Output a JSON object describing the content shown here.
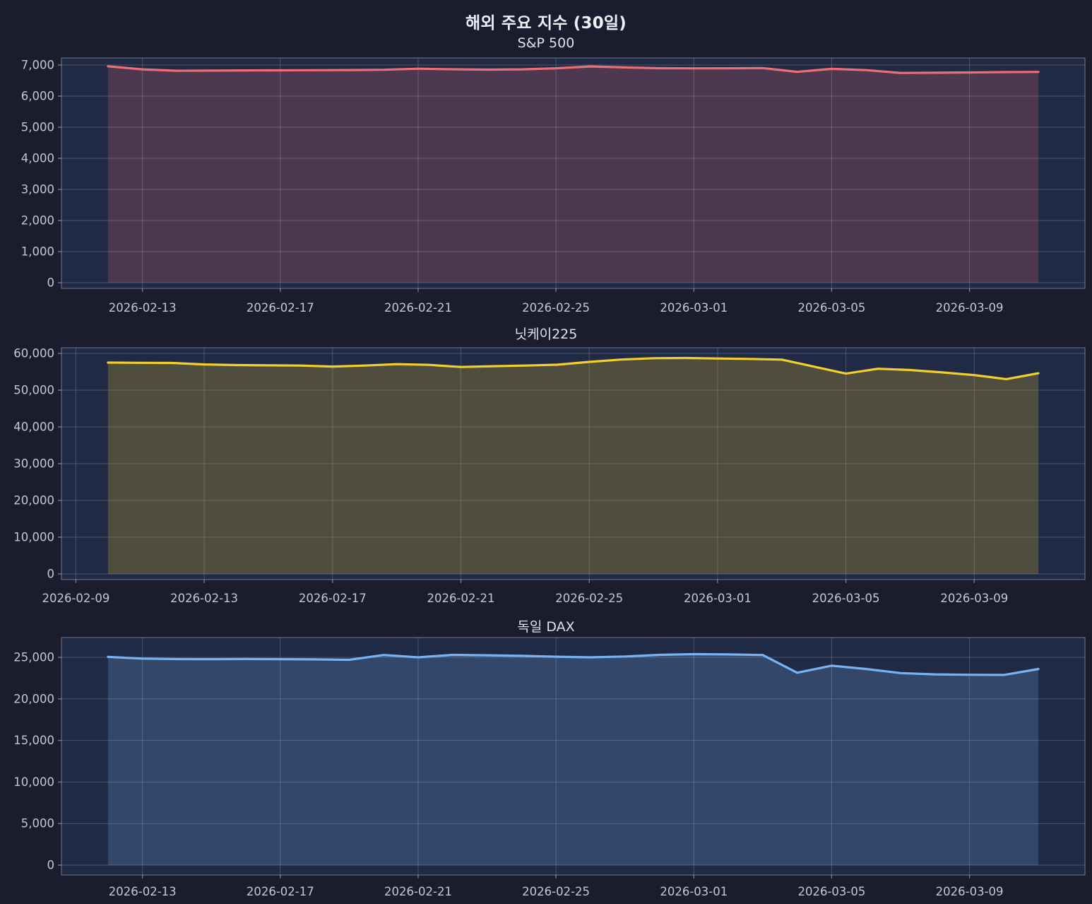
{
  "title": "해외 주요 지수 (30일)",
  "colors": {
    "background": "#1b1d2e",
    "plot_background": "#202a45",
    "grid": "rgba(195,202,220,0.25)",
    "border": "rgba(195,202,220,0.38)",
    "tick_mark": "rgba(195,202,220,0.55)",
    "tick_text": "#c4c7d3",
    "sp500_line": "#ee6e76",
    "nikkei_line": "#f3cf2b",
    "dax_line": "#77b3f3"
  },
  "chart_data": [
    {
      "id": "sp500",
      "type": "area",
      "title": "S&P 500",
      "line_color": "#ee6e76",
      "fill_opacity": 0.22,
      "ylim": [
        -182,
        7227
      ],
      "xlim_day_offsets": [
        -1.35,
        28.35
      ],
      "yticks": [
        {
          "value": 0,
          "label": "0"
        },
        {
          "value": 1000,
          "label": "1,000"
        },
        {
          "value": 2000,
          "label": "2,000"
        },
        {
          "value": 3000,
          "label": "3,000"
        },
        {
          "value": 4000,
          "label": "4,000"
        },
        {
          "value": 5000,
          "label": "5,000"
        },
        {
          "value": 6000,
          "label": "6,000"
        },
        {
          "value": 7000,
          "label": "7,000"
        }
      ],
      "xticks": [
        {
          "day": 1,
          "label": "2026-02-13"
        },
        {
          "day": 5,
          "label": "2026-02-17"
        },
        {
          "day": 9,
          "label": "2026-02-21"
        },
        {
          "day": 13,
          "label": "2026-02-25"
        },
        {
          "day": 17,
          "label": "2026-03-01"
        },
        {
          "day": 21,
          "label": "2026-03-05"
        },
        {
          "day": 25,
          "label": "2026-03-09"
        }
      ],
      "dates": [
        "2026-02-12",
        "2026-02-13",
        "2026-02-14",
        "2026-02-15",
        "2026-02-16",
        "2026-02-17",
        "2026-02-18",
        "2026-02-19",
        "2026-02-20",
        "2026-02-21",
        "2026-02-22",
        "2026-02-23",
        "2026-02-24",
        "2026-02-25",
        "2026-02-26",
        "2026-02-27",
        "2026-02-28",
        "2026-03-01",
        "2026-03-02",
        "2026-03-03",
        "2026-03-04",
        "2026-03-05",
        "2026-03-06",
        "2026-03-07",
        "2026-03-08",
        "2026-03-09",
        "2026-03-10",
        "2026-03-11"
      ],
      "values": [
        6958,
        6862,
        6815,
        6820,
        6826,
        6830,
        6833,
        6838,
        6848,
        6882,
        6864,
        6853,
        6860,
        6896,
        6954,
        6922,
        6898,
        6892,
        6896,
        6902,
        6782,
        6876,
        6836,
        6745,
        6752,
        6762,
        6772,
        6780
      ]
    },
    {
      "id": "nikkei225",
      "type": "area",
      "title": "닛케이225",
      "line_color": "#f3cf2b",
      "fill_opacity": 0.22,
      "ylim": [
        -1539,
        61539
      ],
      "xlim_day_offsets": [
        -1.45,
        30.45
      ],
      "yticks": [
        {
          "value": 0,
          "label": "0"
        },
        {
          "value": 10000,
          "label": "10,000"
        },
        {
          "value": 20000,
          "label": "20,000"
        },
        {
          "value": 30000,
          "label": "30,000"
        },
        {
          "value": 40000,
          "label": "40,000"
        },
        {
          "value": 50000,
          "label": "50,000"
        },
        {
          "value": 60000,
          "label": "60,000"
        }
      ],
      "xticks": [
        {
          "day": -1,
          "label": "2026-02-09"
        },
        {
          "day": 3,
          "label": "2026-02-13"
        },
        {
          "day": 7,
          "label": "2026-02-17"
        },
        {
          "day": 11,
          "label": "2026-02-21"
        },
        {
          "day": 15,
          "label": "2026-02-25"
        },
        {
          "day": 19,
          "label": "2026-03-01"
        },
        {
          "day": 23,
          "label": "2026-03-05"
        },
        {
          "day": 27,
          "label": "2026-03-09"
        }
      ],
      "dates": [
        "2026-02-10",
        "2026-02-11",
        "2026-02-12",
        "2026-02-13",
        "2026-02-14",
        "2026-02-15",
        "2026-02-16",
        "2026-02-17",
        "2026-02-18",
        "2026-02-19",
        "2026-02-20",
        "2026-02-21",
        "2026-02-22",
        "2026-02-23",
        "2026-02-24",
        "2026-02-25",
        "2026-02-26",
        "2026-02-27",
        "2026-02-28",
        "2026-03-01",
        "2026-03-02",
        "2026-03-03",
        "2026-03-04",
        "2026-03-05",
        "2026-03-06",
        "2026-03-07",
        "2026-03-08",
        "2026-03-09",
        "2026-03-10",
        "2026-03-11"
      ],
      "values": [
        57500,
        57450,
        57400,
        57000,
        56820,
        56760,
        56700,
        56420,
        56700,
        57080,
        56880,
        56300,
        56520,
        56700,
        56920,
        57700,
        58320,
        58700,
        58760,
        58620,
        58500,
        58300,
        56400,
        54500,
        55820,
        55480,
        54820,
        54100,
        53000,
        54600
      ]
    },
    {
      "id": "dax",
      "type": "area",
      "title": "독일 DAX",
      "line_color": "#77b3f3",
      "fill_opacity": 0.22,
      "ylim": [
        -1190,
        27381
      ],
      "xlim_day_offsets": [
        -1.35,
        28.35
      ],
      "yticks": [
        {
          "value": 0,
          "label": "0"
        },
        {
          "value": 5000,
          "label": "5,000"
        },
        {
          "value": 10000,
          "label": "10,000"
        },
        {
          "value": 15000,
          "label": "15,000"
        },
        {
          "value": 20000,
          "label": "20,000"
        },
        {
          "value": 25000,
          "label": "25,000"
        }
      ],
      "xticks": [
        {
          "day": 1,
          "label": "2026-02-13"
        },
        {
          "day": 5,
          "label": "2026-02-17"
        },
        {
          "day": 9,
          "label": "2026-02-21"
        },
        {
          "day": 13,
          "label": "2026-02-25"
        },
        {
          "day": 17,
          "label": "2026-03-01"
        },
        {
          "day": 21,
          "label": "2026-03-05"
        },
        {
          "day": 25,
          "label": "2026-03-09"
        }
      ],
      "dates": [
        "2026-02-12",
        "2026-02-13",
        "2026-02-14",
        "2026-02-15",
        "2026-02-16",
        "2026-02-17",
        "2026-02-18",
        "2026-02-19",
        "2026-02-20",
        "2026-02-21",
        "2026-02-22",
        "2026-02-23",
        "2026-02-24",
        "2026-02-25",
        "2026-02-26",
        "2026-02-27",
        "2026-02-28",
        "2026-03-01",
        "2026-03-02",
        "2026-03-03",
        "2026-03-04",
        "2026-03-05",
        "2026-03-06",
        "2026-03-07",
        "2026-03-08",
        "2026-03-09",
        "2026-03-10",
        "2026-03-11"
      ],
      "values": [
        25050,
        24850,
        24790,
        24780,
        24800,
        24780,
        24750,
        24700,
        25280,
        25000,
        25300,
        25250,
        25180,
        25080,
        25000,
        25100,
        25300,
        25380,
        25350,
        25280,
        23150,
        24000,
        23600,
        23100,
        22950,
        22900,
        22880,
        23600
      ]
    }
  ]
}
